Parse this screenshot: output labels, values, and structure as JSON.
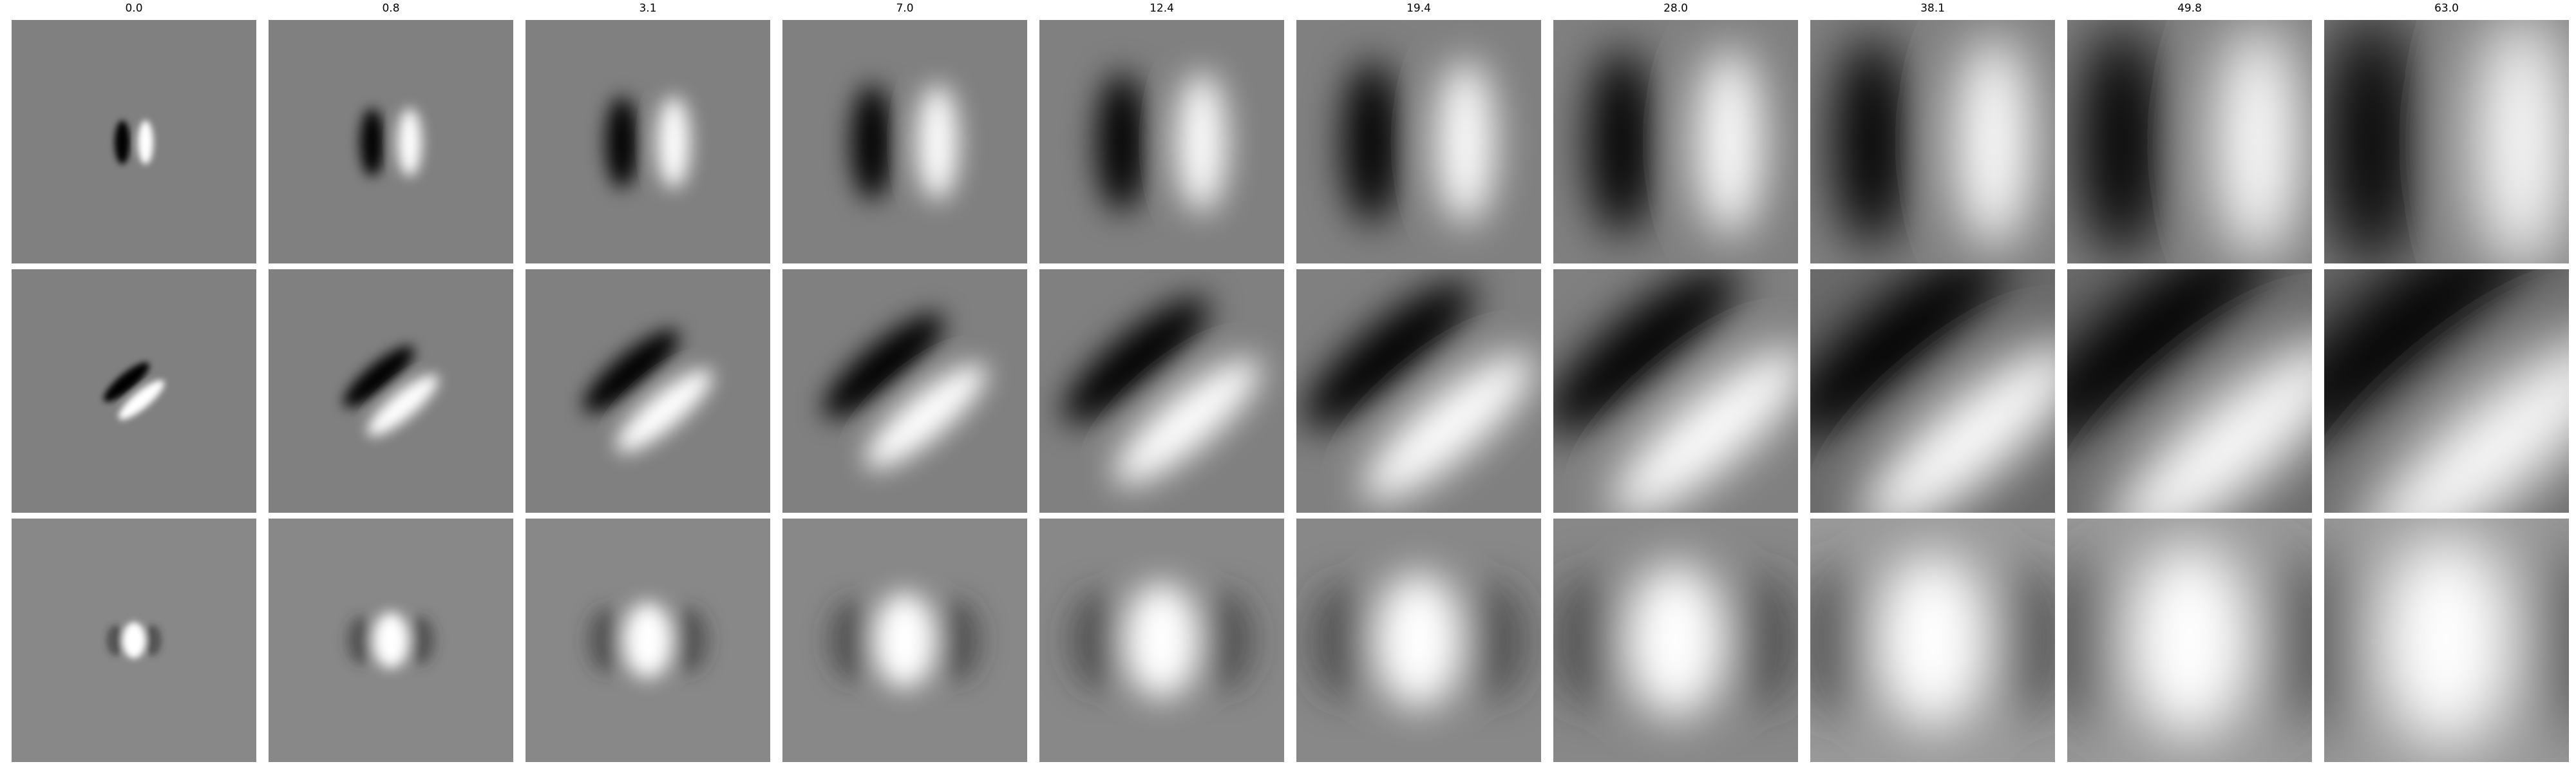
{
  "columns": [
    "0.0",
    "0.8",
    "3.1",
    "7.0",
    "12.4",
    "19.4",
    "28.0",
    "38.1",
    "49.8",
    "63.0"
  ]
}
